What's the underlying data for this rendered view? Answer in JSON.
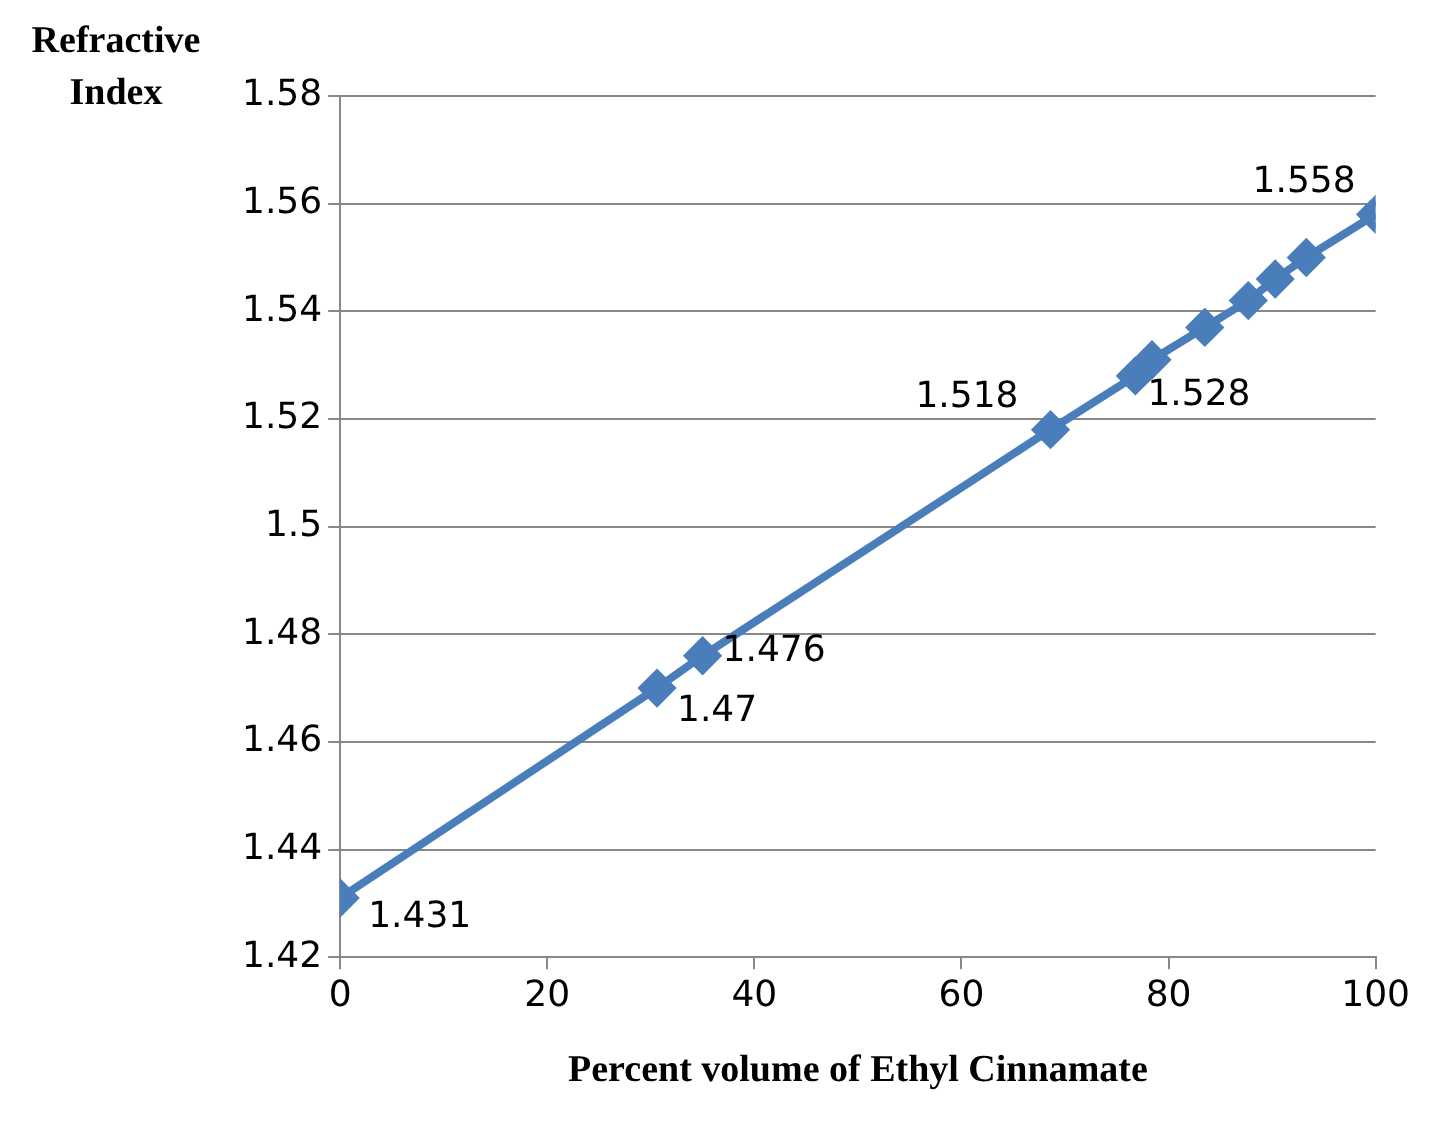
{
  "chart_data": {
    "type": "line",
    "xlabel": "Percent volume of Ethyl Cinnamate",
    "ylabel": "Refractive Index",
    "x": [
      0,
      30.6,
      35,
      68.6,
      76.8,
      78.4,
      83.5,
      87.7,
      90.3,
      93.3,
      100
    ],
    "series": [
      {
        "color": "#4a7ebb",
        "values": [
          1.431,
          1.47,
          1.476,
          1.518,
          1.528,
          1.531,
          1.537,
          1.542,
          1.546,
          1.55,
          1.558
        ],
        "value_labels": [
          "1.431",
          "1.47",
          "1.476",
          "1.518",
          "1.528",
          null,
          null,
          null,
          null,
          null,
          "1.558"
        ]
      }
    ],
    "xlim": [
      0,
      100
    ],
    "xticks": [
      0,
      20,
      40,
      60,
      80,
      100
    ],
    "ylim": [
      1.42,
      1.58
    ],
    "yticks": [
      1.42,
      1.44,
      1.46,
      1.48,
      1.5,
      1.52,
      1.54,
      1.56,
      1.58
    ],
    "grid": "y",
    "marker": "diamond",
    "line_style": "solid",
    "legend": false
  }
}
